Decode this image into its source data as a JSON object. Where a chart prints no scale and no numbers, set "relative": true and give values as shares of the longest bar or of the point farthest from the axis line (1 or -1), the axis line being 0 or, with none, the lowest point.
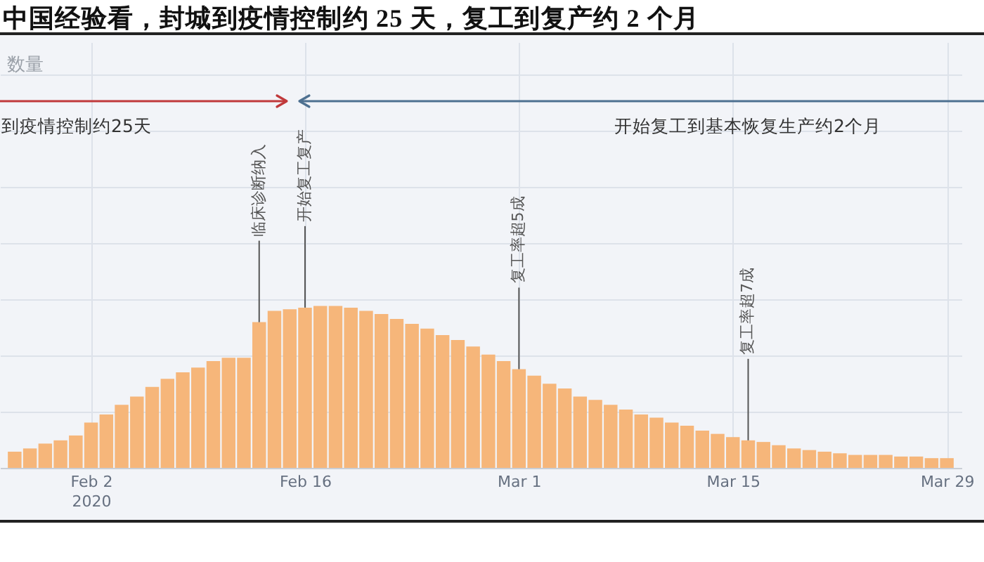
{
  "chart_data": {
    "type": "bar",
    "title": "中国经验看，封城到疫情控制约 25 天，复工到复产约 2 个月",
    "relative": true,
    "color": "#f6b67a",
    "grid": true,
    "x": [
      "2020-01-28",
      "2020-01-29",
      "2020-01-30",
      "2020-01-31",
      "2020-02-01",
      "2020-02-02",
      "2020-02-03",
      "2020-02-04",
      "2020-02-05",
      "2020-02-06",
      "2020-02-07",
      "2020-02-08",
      "2020-02-09",
      "2020-02-10",
      "2020-02-11",
      "2020-02-12",
      "2020-02-13",
      "2020-02-14",
      "2020-02-15",
      "2020-02-16",
      "2020-02-17",
      "2020-02-18",
      "2020-02-19",
      "2020-02-20",
      "2020-02-21",
      "2020-02-22",
      "2020-02-23",
      "2020-02-24",
      "2020-02-25",
      "2020-02-26",
      "2020-02-27",
      "2020-02-28",
      "2020-02-29",
      "2020-03-01",
      "2020-03-02",
      "2020-03-03",
      "2020-03-04",
      "2020-03-05",
      "2020-03-06",
      "2020-03-07",
      "2020-03-08",
      "2020-03-09",
      "2020-03-10",
      "2020-03-11",
      "2020-03-12",
      "2020-03-13",
      "2020-03-14",
      "2020-03-15",
      "2020-03-16",
      "2020-03-17",
      "2020-03-18",
      "2020-03-19",
      "2020-03-20",
      "2020-03-21",
      "2020-03-22",
      "2020-03-23",
      "2020-03-24",
      "2020-03-25",
      "2020-03-26",
      "2020-03-27",
      "2020-03-28",
      "2020-03-29"
    ],
    "values": [
      0.1,
      0.12,
      0.15,
      0.17,
      0.2,
      0.28,
      0.33,
      0.39,
      0.44,
      0.5,
      0.55,
      0.59,
      0.62,
      0.66,
      0.68,
      0.68,
      0.9,
      0.97,
      0.98,
      0.99,
      1.0,
      1.0,
      0.99,
      0.97,
      0.95,
      0.92,
      0.89,
      0.86,
      0.82,
      0.79,
      0.75,
      0.7,
      0.66,
      0.61,
      0.57,
      0.52,
      0.49,
      0.44,
      0.42,
      0.39,
      0.36,
      0.33,
      0.31,
      0.28,
      0.26,
      0.23,
      0.21,
      0.19,
      0.17,
      0.16,
      0.14,
      0.12,
      0.11,
      0.1,
      0.09,
      0.08,
      0.08,
      0.08,
      0.07,
      0.07,
      0.06,
      0.06
    ],
    "xlim": [
      "2020-01-27T12:00",
      "2020-03-29T12:00"
    ],
    "xticks": [
      {
        "value": "2020-02-02",
        "label": "Feb 2\n2020"
      },
      {
        "value": "2020-02-16",
        "label": "Feb 16"
      },
      {
        "value": "2020-03-01",
        "label": "Mar 1"
      },
      {
        "value": "2020-03-15",
        "label": "Mar 15"
      },
      {
        "value": "2020-03-29",
        "label": "Mar 29"
      }
    ],
    "annotations": [
      {
        "text": "临床诊断纳入",
        "x": "2020-02-13",
        "y": 0.9
      },
      {
        "text": "开始复工复产",
        "x": "2020-02-16",
        "y": 0.99
      },
      {
        "text": "复工率超5成",
        "x": "2020-03-01",
        "y": 0.61
      },
      {
        "text": "复工率超7成",
        "x": "2020-03-16",
        "y": 0.17
      },
      "数量",
      "到疫情控制约25天",
      "开始复工到基本恢复生产约2个月"
    ]
  }
}
